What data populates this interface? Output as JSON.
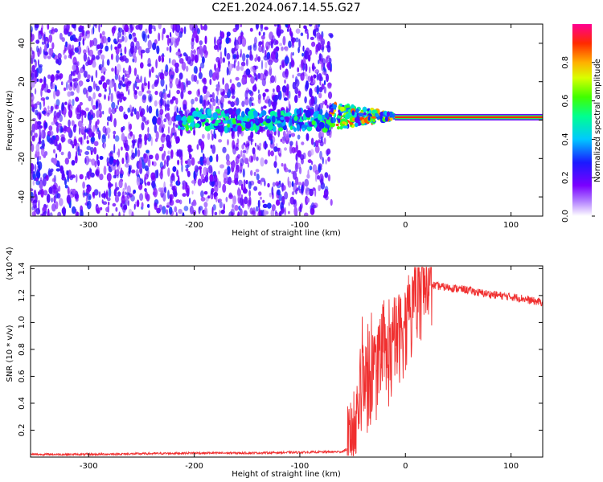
{
  "title": "C2E1.2024.067.14.55.G27",
  "chart_data": [
    {
      "type": "heatmap",
      "xlabel": "Height of straight line (km)",
      "ylabel": "Frequency (Hz)",
      "xlim": [
        -355,
        130
      ],
      "ylim": [
        -50,
        50
      ],
      "x_ticks": [
        -300,
        -200,
        -100,
        0,
        100
      ],
      "y_ticks": [
        -40,
        -20,
        0,
        20,
        40
      ],
      "colorbar": {
        "label": "Normalized spectral amplitude",
        "range": [
          0.0,
          1.0
        ],
        "ticks": [
          "0.0",
          "0.2",
          "0.4",
          "0.6",
          "0.8"
        ]
      },
      "regions": [
        {
          "description": "broadband noise",
          "x_range": [
            -355,
            -70
          ],
          "y_range": [
            -50,
            50
          ],
          "amplitude": 0.3
        },
        {
          "description": "emerging signal band",
          "x_range": [
            -215,
            -70
          ],
          "y_center": 0,
          "amplitude": 0.45
        },
        {
          "description": "transition",
          "x_range": [
            -70,
            -10
          ],
          "y_center": 2,
          "amplitude": 0.7
        },
        {
          "description": "strong narrowband signal",
          "x_range": [
            -10,
            130
          ],
          "y_center": 1.5,
          "amplitude": 0.9
        }
      ],
      "colors": {
        "noise": "#7b00ff",
        "peak": "#ff2020"
      }
    },
    {
      "type": "line",
      "xlabel": "Height of straight line (km)",
      "ylabel": "SNR (10 * v/v)",
      "y_multiplier": "(x10^4)",
      "xlim": [
        -355,
        130
      ],
      "ylim": [
        0,
        1.42
      ],
      "x_ticks": [
        -300,
        -200,
        -100,
        0,
        100
      ],
      "y_ticks": [
        "0.2",
        "0.4",
        "0.6",
        "0.8",
        "1.0",
        "1.2",
        "1.4"
      ],
      "color": "#f03030",
      "series": [
        {
          "x": [
            -355,
            -300,
            -250,
            -200,
            -150,
            -100,
            -60,
            -50,
            -45,
            -40,
            -35,
            -30,
            -25,
            -20,
            -15,
            -10,
            -5,
            0,
            5,
            10,
            15,
            20,
            25,
            30,
            40,
            50,
            60,
            70,
            80,
            90,
            100,
            110,
            120,
            130
          ],
          "y": [
            0.02,
            0.02,
            0.025,
            0.03,
            0.03,
            0.035,
            0.04,
            0.08,
            0.35,
            0.6,
            0.5,
            0.65,
            0.55,
            0.75,
            0.7,
            0.85,
            0.9,
            0.95,
            1.05,
            1.15,
            1.22,
            1.26,
            1.28,
            1.27,
            1.26,
            1.25,
            1.24,
            1.22,
            1.21,
            1.2,
            1.19,
            1.18,
            1.16,
            1.15
          ]
        }
      ]
    }
  ]
}
